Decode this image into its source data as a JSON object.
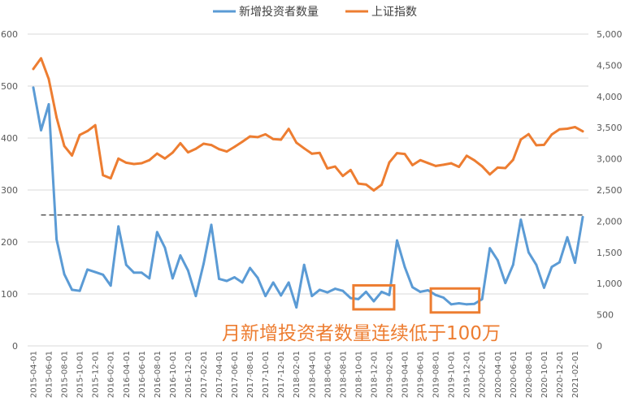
{
  "chart_data": {
    "type": "line",
    "dual_axis": true,
    "legend_position": "top-center",
    "grid": "horizontal",
    "annotation": {
      "text": "月新增投资者数量连续低于100万",
      "color": "#ED7D31"
    },
    "reference_line": {
      "y_right": 2100,
      "style": "dashed",
      "color": "#595959"
    },
    "highlight_boxes": [
      {
        "from": "2018-10-01",
        "to": "2019-02-01"
      },
      {
        "from": "2019-08-01",
        "to": "2020-01-01"
      }
    ],
    "y_left": {
      "min": 0,
      "max": 600,
      "ticks": [
        "0",
        "100",
        "200",
        "300",
        "400",
        "500",
        "600"
      ]
    },
    "y_right": {
      "min": 0,
      "max": 5000,
      "ticks": [
        "0",
        "500",
        "1,000",
        "1,500",
        "2,000",
        "2,500",
        "3,000",
        "3,500",
        "4,000",
        "4,500",
        "5,000"
      ]
    },
    "x": [
      "2015-04-01",
      "2015-05-01",
      "2015-06-01",
      "2015-07-01",
      "2015-08-01",
      "2015-09-01",
      "2015-10-01",
      "2015-11-01",
      "2015-12-01",
      "2016-01-01",
      "2016-02-01",
      "2016-03-01",
      "2016-04-01",
      "2016-05-01",
      "2016-06-01",
      "2016-07-01",
      "2016-08-01",
      "2016-09-01",
      "2016-10-01",
      "2016-11-01",
      "2016-12-01",
      "2017-01-01",
      "2017-02-01",
      "2017-03-01",
      "2017-04-01",
      "2017-05-01",
      "2017-06-01",
      "2017-07-01",
      "2017-08-01",
      "2017-09-01",
      "2017-10-01",
      "2017-11-01",
      "2017-12-01",
      "2018-01-01",
      "2018-02-01",
      "2018-03-01",
      "2018-04-01",
      "2018-05-01",
      "2018-06-01",
      "2018-07-01",
      "2018-08-01",
      "2018-09-01",
      "2018-10-01",
      "2018-11-01",
      "2018-12-01",
      "2019-01-01",
      "2019-02-01",
      "2019-03-01",
      "2019-04-01",
      "2019-05-01",
      "2019-06-01",
      "2019-07-01",
      "2019-08-01",
      "2019-09-01",
      "2019-10-01",
      "2019-11-01",
      "2019-12-01",
      "2020-01-01",
      "2020-02-01",
      "2020-03-01",
      "2020-04-01",
      "2020-05-01",
      "2020-06-01",
      "2020-07-01",
      "2020-08-01",
      "2020-09-01",
      "2020-10-01",
      "2020-11-01",
      "2020-12-01",
      "2021-01-01",
      "2021-02-01",
      "2021-03-01"
    ],
    "x_tick_every": 2,
    "series": [
      {
        "name": "新增投资者数量",
        "axis": "left",
        "color": "#5B9BD5",
        "values": [
          497,
          415,
          465,
          205,
          138,
          108,
          106,
          147,
          142,
          137,
          116,
          230,
          156,
          141,
          141,
          130,
          219,
          189,
          130,
          174,
          145,
          96,
          158,
          233,
          129,
          125,
          132,
          122,
          150,
          131,
          96,
          122,
          97,
          122,
          74,
          156,
          96,
          108,
          103,
          110,
          106,
          92,
          90,
          104,
          86,
          104,
          98,
          203,
          152,
          113,
          104,
          107,
          98,
          93,
          80,
          82,
          80,
          81,
          90,
          188,
          165,
          121,
          156,
          243,
          180,
          156,
          112,
          152,
          161,
          209,
          160,
          248
        ]
      },
      {
        "name": "上证指数",
        "axis": "right",
        "color": "#ED7D31",
        "values": [
          4442,
          4612,
          4278,
          3664,
          3206,
          3053,
          3383,
          3445,
          3539,
          2738,
          2688,
          3004,
          2938,
          2917,
          2930,
          2979,
          3085,
          3005,
          3100,
          3250,
          3104,
          3160,
          3242,
          3222,
          3155,
          3117,
          3192,
          3273,
          3360,
          3348,
          3393,
          3317,
          3307,
          3480,
          3259,
          3168,
          3082,
          3095,
          2847,
          2876,
          2725,
          2821,
          2603,
          2588,
          2494,
          2585,
          2941,
          3091,
          3078,
          2898,
          2979,
          2932,
          2886,
          2905,
          2929,
          2871,
          3050,
          2977,
          2880,
          2750,
          2860,
          2852,
          2985,
          3310,
          3396,
          3218,
          3224,
          3391,
          3473,
          3483,
          3509,
          3441
        ]
      }
    ]
  }
}
